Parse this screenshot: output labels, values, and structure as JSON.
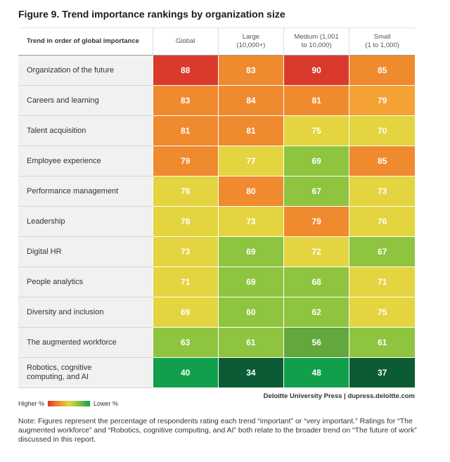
{
  "title": "Figure 9. Trend importance rankings by organization size",
  "chart_data": {
    "type": "heatmap",
    "title": "Figure 9. Trend importance rankings by organization size",
    "row_header": "Trend in order of global importance",
    "columns": [
      "Global",
      "Large\n(10,000+)",
      "Medium (1,001\nto 10,000)",
      "Small\n(1 to 1,000)"
    ],
    "rows": [
      {
        "label": "Organization of the future",
        "values": [
          88,
          83,
          90,
          85
        ]
      },
      {
        "label": "Careers and learning",
        "values": [
          83,
          84,
          81,
          79
        ]
      },
      {
        "label": "Talent acquisition",
        "values": [
          81,
          81,
          75,
          70
        ]
      },
      {
        "label": "Employee experience",
        "values": [
          79,
          77,
          69,
          85
        ]
      },
      {
        "label": "Performance management",
        "values": [
          78,
          80,
          67,
          73
        ]
      },
      {
        "label": "Leadership",
        "values": [
          78,
          73,
          79,
          76
        ]
      },
      {
        "label": "Digital HR",
        "values": [
          73,
          69,
          72,
          67
        ]
      },
      {
        "label": "People analytics",
        "values": [
          71,
          69,
          68,
          71
        ]
      },
      {
        "label": "Diversity and inclusion",
        "values": [
          69,
          60,
          62,
          75
        ]
      },
      {
        "label": "The augmented workforce",
        "values": [
          63,
          61,
          56,
          61
        ]
      },
      {
        "label": "Robotics, cognitive\ncomputing, and AI",
        "values": [
          40,
          34,
          48,
          37
        ]
      }
    ],
    "cell_colors": [
      [
        "#d93a2b",
        "#f08a2f",
        "#d93a2b",
        "#f08a2f"
      ],
      [
        "#f08a2f",
        "#f08a2f",
        "#f08a2f",
        "#f3a233"
      ],
      [
        "#f08a2f",
        "#f08a2f",
        "#e3d440",
        "#e3d440"
      ],
      [
        "#f08a2f",
        "#e3d440",
        "#8fc43f",
        "#f08a2f"
      ],
      [
        "#e3d440",
        "#f08a2f",
        "#8fc43f",
        "#e3d440"
      ],
      [
        "#e3d440",
        "#e3d440",
        "#f08a2f",
        "#e3d440"
      ],
      [
        "#e3d440",
        "#8fc43f",
        "#e3d440",
        "#8fc43f"
      ],
      [
        "#e3d440",
        "#8fc43f",
        "#8fc43f",
        "#e3d440"
      ],
      [
        "#e3d440",
        "#8fc43f",
        "#8fc43f",
        "#e3d440"
      ],
      [
        "#8fc43f",
        "#8fc43f",
        "#62a83c",
        "#8fc43f"
      ],
      [
        "#119f4c",
        "#0b5b35",
        "#119f4c",
        "#0b5b35"
      ]
    ],
    "legend": {
      "high_label": "Higher %",
      "low_label": "Lower %",
      "colors": [
        "#d93a2b",
        "#f08a2f",
        "#e3d440",
        "#7fbf3f",
        "#119f4c"
      ]
    }
  },
  "credit": "Deloitte University Press  |  dupress.deloitte.com",
  "note": "Note: Figures represent the percentage of respondents rating each trend “important” or “very important.” Ratings for “The augmented workforce” and “Robotics, cognitive computing, and AI” both relate to the broader trend on “The future of work” discussed in this report."
}
